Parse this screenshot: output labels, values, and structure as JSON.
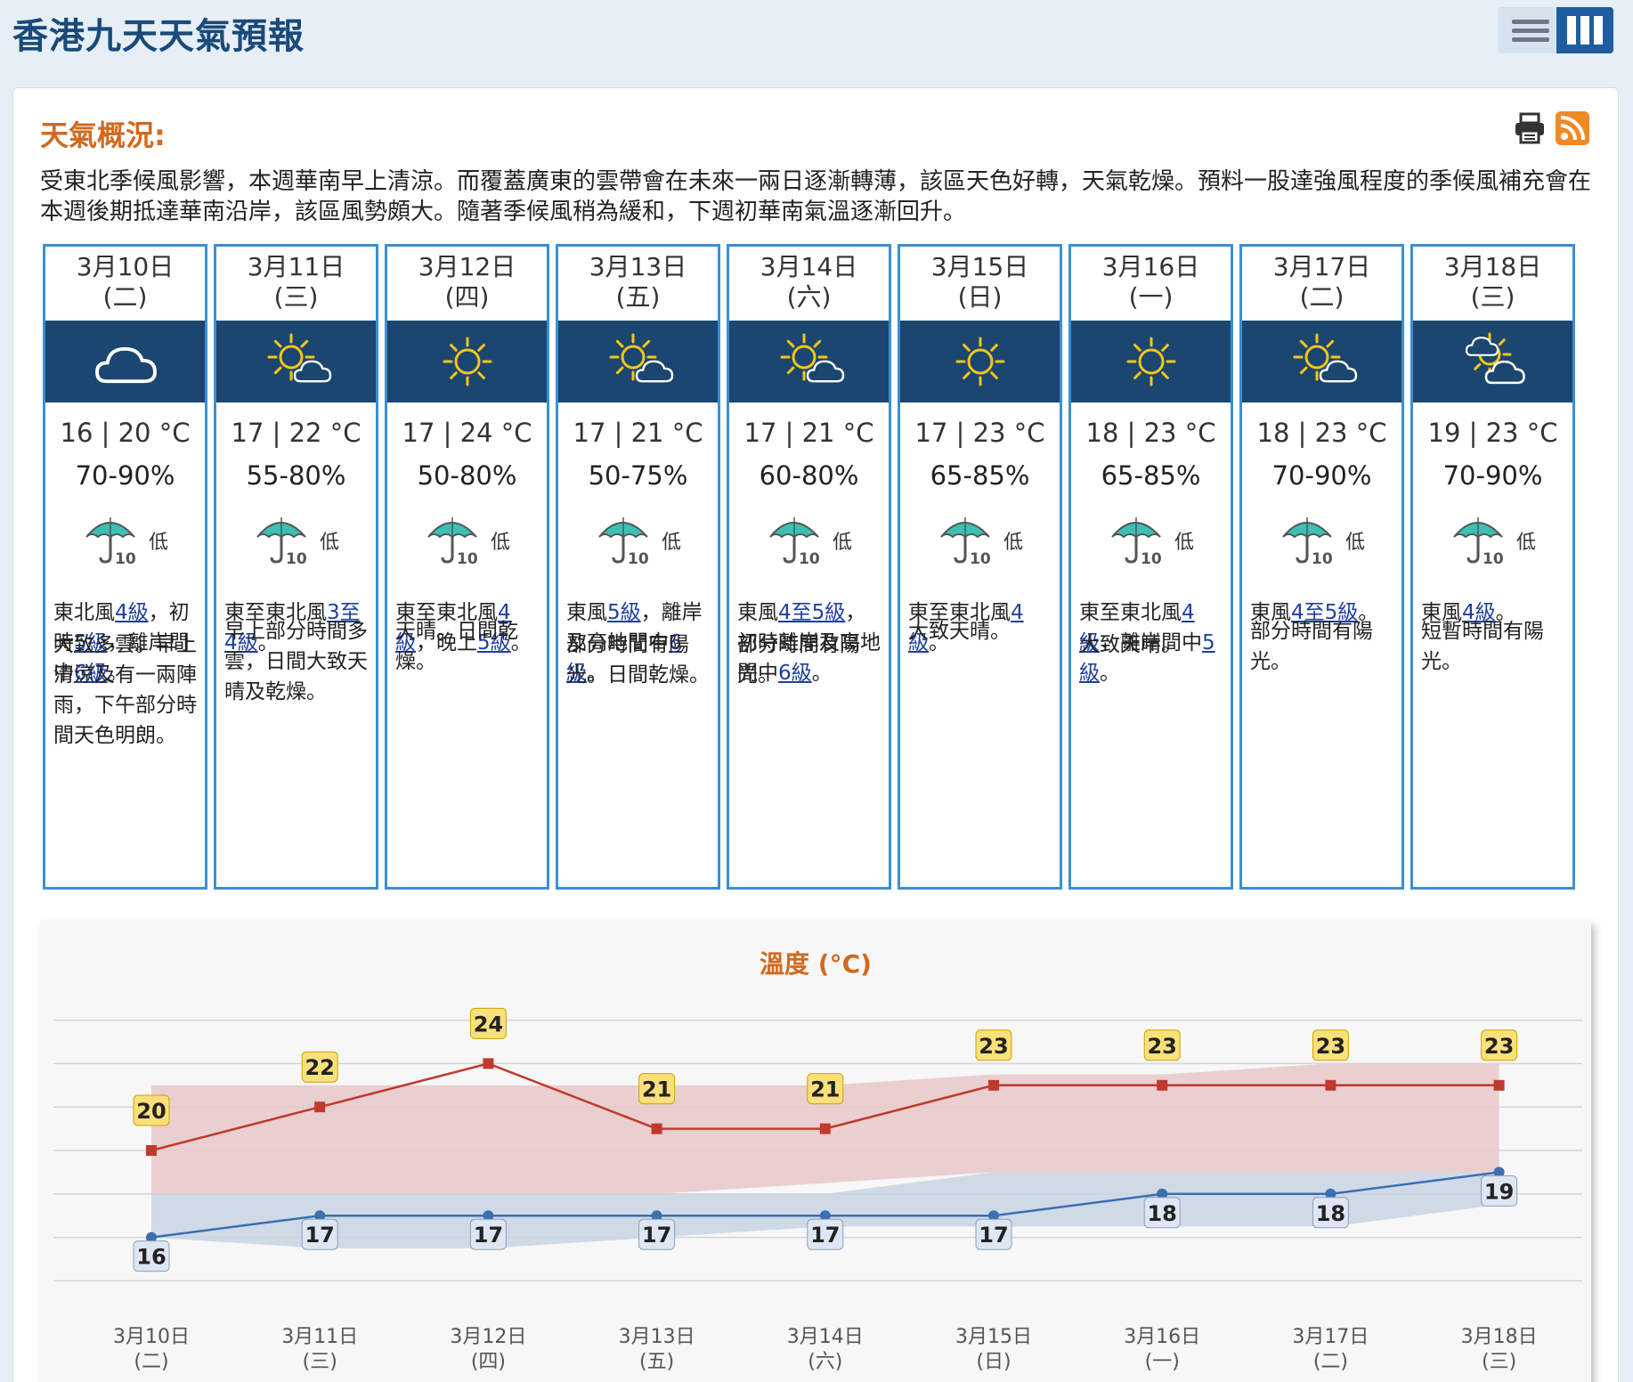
{
  "page": {
    "title": "香港九天天氣預報"
  },
  "general": {
    "label": "天氣概況:",
    "text": "受東北季候風影響，本週華南早上清涼。而覆蓋廣東的雲帶會在未來一兩日逐漸轉薄，該區天色好轉，天氣乾燥。預料一股達強風程度的季候風補充會在本週後期抵達華南沿岸，該區風勢頗大。隨著季候風稍為緩和，下週初華南氣溫逐漸回升。"
  },
  "icons": {
    "print": "printer-icon",
    "rss": "rss-icon",
    "list_view": "list-view-icon",
    "grid_view": "grid-view-icon"
  },
  "colors": {
    "accent": "#d2691e",
    "band": "#1b4670",
    "border": "#3b8fd4",
    "max_line": "#c0392b",
    "min_line": "#3a6fb0"
  },
  "days": [
    {
      "date": "3月10日",
      "weekday": "(二)",
      "icon": "cloud-icon",
      "temp": "16 | 20 °C",
      "rh": "70-90%",
      "psr": "低",
      "wind": [
        {
          "t": "東北風"
        },
        {
          "t": "4級",
          "u": true
        },
        {
          "t": "，初時"
        },
        {
          "t": "5級",
          "u": true
        },
        {
          "t": "，離岸間中"
        },
        {
          "t": "6級",
          "u": true
        },
        {
          "t": "。"
        }
      ],
      "detail": "大致多雲。早上清涼及有一兩陣雨，下午部分時間天色明朗。",
      "detail_top": 430
    },
    {
      "date": "3月11日",
      "weekday": "(三)",
      "icon": "sun-cloud-icon",
      "temp": "17 | 22 °C",
      "rh": "55-80%",
      "psr": "低",
      "wind": [
        {
          "t": "東至東北風"
        },
        {
          "t": "3至4級",
          "u": true
        },
        {
          "t": "。"
        }
      ],
      "detail": "早上部分時間多雲，日間大致天晴及乾燥。",
      "detail_top": 415
    },
    {
      "date": "3月12日",
      "weekday": "(四)",
      "icon": "sun-icon",
      "temp": "17 | 24 °C",
      "rh": "50-80%",
      "psr": "低",
      "wind": [
        {
          "t": "東至東北風"
        },
        {
          "t": "4級",
          "u": true
        },
        {
          "t": "，晚上"
        },
        {
          "t": "5級",
          "u": true
        },
        {
          "t": "。"
        }
      ],
      "detail": "天晴。日間乾燥。",
      "detail_top": 415
    },
    {
      "date": "3月13日",
      "weekday": "(五)",
      "icon": "sun-cloud-icon",
      "temp": "17 | 21 °C",
      "rh": "50-75%",
      "psr": "低",
      "wind": [
        {
          "t": "東風"
        },
        {
          "t": "5級",
          "u": true
        },
        {
          "t": "，離岸及高地間中"
        },
        {
          "t": "6級",
          "u": true
        },
        {
          "t": "。"
        }
      ],
      "detail": "部分時間有陽光。日間乾燥。",
      "detail_top": 430
    },
    {
      "date": "3月14日",
      "weekday": "(六)",
      "icon": "sun-cloud-icon",
      "temp": "17 | 21 °C",
      "rh": "60-80%",
      "psr": "低",
      "wind": [
        {
          "t": "東風"
        },
        {
          "t": "4至5級",
          "u": true
        },
        {
          "t": "，初時離岸及高地間中"
        },
        {
          "t": "6級",
          "u": true
        },
        {
          "t": "。"
        }
      ],
      "detail": "部分時間有陽光。",
      "detail_top": 430
    },
    {
      "date": "3月15日",
      "weekday": "(日)",
      "icon": "sun-icon",
      "temp": "17 | 23 °C",
      "rh": "65-85%",
      "psr": "低",
      "wind": [
        {
          "t": "東至東北風"
        },
        {
          "t": "4級",
          "u": true
        },
        {
          "t": "。"
        }
      ],
      "detail": "大致天晴。",
      "detail_top": 415
    },
    {
      "date": "3月16日",
      "weekday": "(一)",
      "icon": "sun-icon",
      "temp": "18 | 23 °C",
      "rh": "65-85%",
      "psr": "低",
      "wind": [
        {
          "t": "東至東北風"
        },
        {
          "t": "4級",
          "u": true
        },
        {
          "t": "，離岸間中"
        },
        {
          "t": "5級",
          "u": true
        },
        {
          "t": "。"
        }
      ],
      "detail": "大致天晴。",
      "detail_top": 430
    },
    {
      "date": "3月17日",
      "weekday": "(二)",
      "icon": "sun-cloud-icon",
      "temp": "18 | 23 °C",
      "rh": "70-90%",
      "psr": "低",
      "wind": [
        {
          "t": "東風"
        },
        {
          "t": "4至5級",
          "u": true
        },
        {
          "t": "。"
        }
      ],
      "detail": "部分時間有陽光。",
      "detail_top": 415
    },
    {
      "date": "3月18日",
      "weekday": "(三)",
      "icon": "cloud-sun-icon",
      "temp": "19 | 23 °C",
      "rh": "70-90%",
      "psr": "低",
      "wind": [
        {
          "t": "東風"
        },
        {
          "t": "4級",
          "u": true
        },
        {
          "t": "。"
        }
      ],
      "detail": "短暫時間有陽光。",
      "detail_top": 415
    }
  ],
  "chart_data": {
    "type": "line",
    "title": "溫度 (°C)",
    "categories": [
      "3月10日",
      "3月11日",
      "3月12日",
      "3月13日",
      "3月14日",
      "3月15日",
      "3月16日",
      "3月17日",
      "3月18日"
    ],
    "category_sub": [
      "(二)",
      "(三)",
      "(四)",
      "(五)",
      "(六)",
      "(日)",
      "(一)",
      "(二)",
      "(三)"
    ],
    "series": [
      {
        "values": [
          20,
          22,
          24,
          21,
          21,
          23,
          23,
          23,
          23
        ],
        "color": "#c0392b"
      },
      {
        "values": [
          16,
          17,
          17,
          17,
          17,
          17,
          18,
          18,
          19
        ],
        "color": "#3a6fb0"
      }
    ],
    "bands": [
      {
        "upper": [
          23,
          23,
          23,
          23,
          23,
          23.5,
          23.5,
          24,
          24
        ],
        "lower": [
          18,
          18,
          18,
          18,
          18.5,
          19,
          19,
          19,
          19
        ],
        "color": "#e7c8ca"
      },
      {
        "upper": [
          18,
          18,
          18,
          18,
          18,
          19,
          19,
          19,
          19
        ],
        "lower": [
          16,
          15.5,
          15.5,
          16,
          16.5,
          16.5,
          16.5,
          16.5,
          17.5
        ],
        "color": "#c9d4e3"
      }
    ],
    "ylim": [
      13,
      26
    ],
    "grid": true
  }
}
